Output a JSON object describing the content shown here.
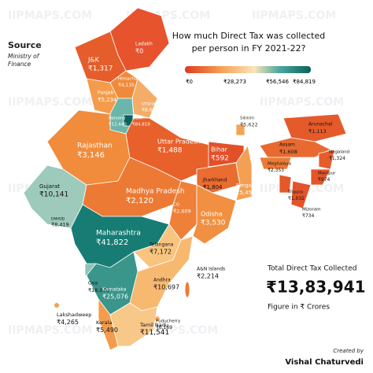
{
  "watermark": "IIPMAPS.COM",
  "source": {
    "label": "Source",
    "text": [
      "Ministry of",
      "Finance"
    ]
  },
  "title": [
    "How much Direct Tax was collected",
    "per person in FY 2021-22?"
  ],
  "legend": [
    "₹0",
    "₹28,273",
    "₹56,546",
    "₹84,819"
  ],
  "regions": [
    {
      "name": "Ladakh",
      "value": "₹0"
    },
    {
      "name": "J&K",
      "value": "₹1,317"
    },
    {
      "name": "Himachal",
      "value": "₹4,135"
    },
    {
      "name": "Punjab",
      "value": "₹5,234"
    },
    {
      "name": "Uttarakhand",
      "value": "₹8,660"
    },
    {
      "name": "Haryana",
      "value": "₹12,440"
    },
    {
      "name": "Delhi",
      "value": "₹84,819"
    },
    {
      "name": "Uttar Pradesh",
      "value": "₹1,488"
    },
    {
      "name": "Rajasthan",
      "value": "₹3,146"
    },
    {
      "name": "Bihar",
      "value": "₹592"
    },
    {
      "name": "Sikkim",
      "value": "₹5,622"
    },
    {
      "name": "Arunachal",
      "value": "₹1,113"
    },
    {
      "name": "Assam",
      "value": "₹1,608"
    },
    {
      "name": "Nagaland",
      "value": "₹1,324"
    },
    {
      "name": "Meghalaya",
      "value": "₹2,353"
    },
    {
      "name": "Manipur",
      "value": "₹974"
    },
    {
      "name": "Tripura",
      "value": "₹1,032"
    },
    {
      "name": "Mizoram",
      "value": "₹734"
    },
    {
      "name": "Jharkhand",
      "value": "₹1,804"
    },
    {
      "name": "Bengal",
      "value": "₹5,454"
    },
    {
      "name": "Gujarat",
      "value": "₹10,141"
    },
    {
      "name": "Madhya Pradesh",
      "value": "₹2,120"
    },
    {
      "name": "CG",
      "value": "₹2,609"
    },
    {
      "name": "Odisha",
      "value": "₹3,530"
    },
    {
      "name": "DNHDD",
      "value": "₹8,419"
    },
    {
      "name": "Maharashtra",
      "value": "₹41,822"
    },
    {
      "name": "Telangana",
      "value": "₹7,172"
    },
    {
      "name": "Goa",
      "value": "₹18,070"
    },
    {
      "name": "Karnataka",
      "value": "₹25,076"
    },
    {
      "name": "Andhra",
      "value": "₹10,697"
    },
    {
      "name": "A&N Islands",
      "value": "₹2,214"
    },
    {
      "name": "Lakshadweep",
      "value": "₹4,265"
    },
    {
      "name": "Kerala",
      "value": "₹5,490"
    },
    {
      "name": "Tamil Nadu",
      "value": "₹11,541"
    },
    {
      "name": "Puducherry",
      "value": "₹6,169"
    }
  ],
  "total": {
    "label": "Total Direct Tax Collected",
    "value": "₹13,83,941",
    "note": "Figure in ₹ Crores"
  },
  "credit": {
    "label": "Created by",
    "name": "Vishal Chaturvedi"
  }
}
